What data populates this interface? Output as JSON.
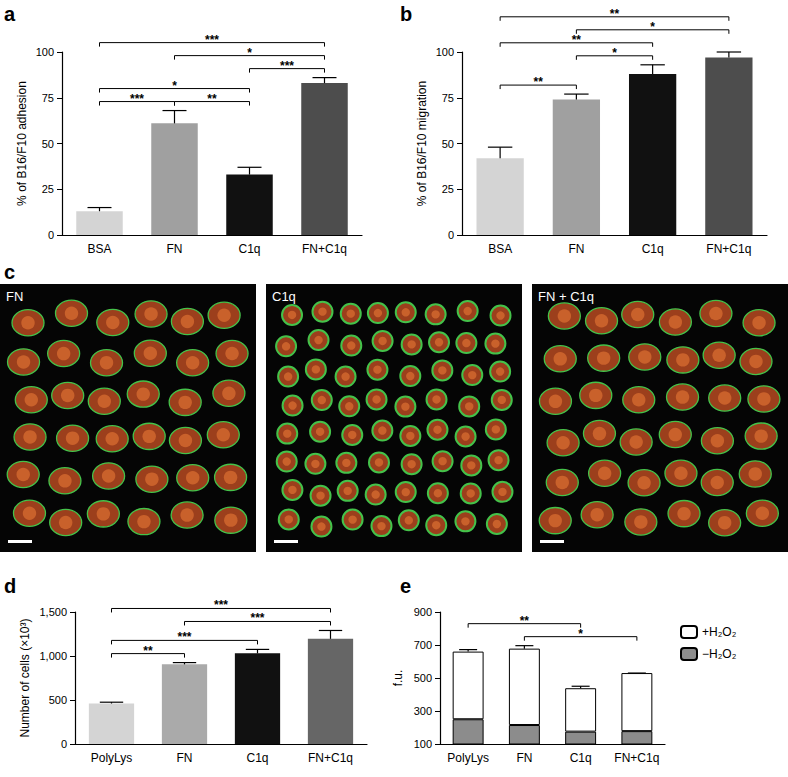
{
  "chart_data": [
    {
      "type": "bar",
      "title": "a",
      "categories": [
        "BSA",
        "FN",
        "C1q",
        "FN+C1q"
      ],
      "values": [
        13,
        61,
        33,
        83
      ],
      "errors": [
        2,
        7,
        4,
        3
      ],
      "colors": [
        "#d4d4d4",
        "#a0a0a0",
        "#111111",
        "#4d4d4d"
      ],
      "ylabel": "% of B16/F10 adhesion",
      "ylim": [
        0,
        100
      ],
      "yticks": [
        0,
        25,
        50,
        75,
        100
      ],
      "grid": false,
      "annotations": [
        {
          "from": "BSA",
          "to": "FN+C1q",
          "label": "***"
        },
        {
          "from": "FN",
          "to": "FN+C1q",
          "label": "*"
        },
        {
          "from": "C1q",
          "to": "FN+C1q",
          "label": "***"
        },
        {
          "from": "BSA",
          "to": "C1q",
          "label": "*"
        },
        {
          "from": "BSA",
          "to": "FN",
          "label": "***"
        },
        {
          "from": "FN",
          "to": "C1q",
          "label": "**"
        }
      ]
    },
    {
      "type": "bar",
      "title": "b",
      "categories": [
        "BSA",
        "FN",
        "C1q",
        "FN+C1q"
      ],
      "values": [
        42,
        74,
        88,
        97
      ],
      "errors": [
        6,
        3,
        5,
        3
      ],
      "colors": [
        "#d4d4d4",
        "#a0a0a0",
        "#111111",
        "#4d4d4d"
      ],
      "ylabel": "% of B16/F10 migration",
      "ylim": [
        0,
        100
      ],
      "yticks": [
        0,
        25,
        50,
        75,
        100
      ],
      "grid": false,
      "annotations": [
        {
          "from": "BSA",
          "to": "FN+C1q",
          "label": "**"
        },
        {
          "from": "FN",
          "to": "FN+C1q",
          "label": "*"
        },
        {
          "from": "BSA",
          "to": "C1q",
          "label": "**"
        },
        {
          "from": "FN",
          "to": "C1q",
          "label": "*"
        },
        {
          "from": "BSA",
          "to": "FN",
          "label": "**"
        }
      ]
    },
    {
      "type": "image",
      "title": "c",
      "categories": [
        "FN",
        "C1q",
        "FN + C1q"
      ]
    },
    {
      "type": "bar",
      "title": "d",
      "categories": [
        "PolyLys",
        "FN",
        "C1q",
        "FN+C1q"
      ],
      "values": [
        460,
        905,
        1030,
        1195
      ],
      "errors": [
        15,
        20,
        45,
        95
      ],
      "colors": [
        "#d4d4d4",
        "#aaaaaa",
        "#111111",
        "#666666"
      ],
      "ylabel": "Number of cells (×10³)",
      "ylim": [
        0,
        1500
      ],
      "yticks": [
        0,
        500,
        {
          "value": 1000,
          "label": "1,000"
        },
        {
          "value": 1500,
          "label": "1,500"
        }
      ],
      "grid": false,
      "annotations": [
        {
          "from": "PolyLys",
          "to": "FN+C1q",
          "label": "***"
        },
        {
          "from": "FN",
          "to": "FN+C1q",
          "label": "***"
        },
        {
          "from": "PolyLys",
          "to": "C1q",
          "label": "***"
        },
        {
          "from": "PolyLys",
          "to": "FN",
          "label": "**"
        }
      ]
    },
    {
      "type": "bar",
      "title": "e",
      "stacked": true,
      "categories": [
        "PolyLys",
        "FN",
        "C1q",
        "FN+C1q"
      ],
      "series": [
        {
          "name": "−H₂O₂",
          "color": "#8c8c8c",
          "values": [
            250,
            215,
            175,
            178
          ]
        },
        {
          "name": "+H₂O₂",
          "color": "#ffffff",
          "values": [
            410,
            463,
            263,
            352
          ],
          "errors": [
            12,
            18,
            12,
            0
          ]
        }
      ],
      "ylabel": "f.u.",
      "ylim": [
        100,
        900
      ],
      "yticks": [
        100,
        300,
        500,
        700,
        900
      ],
      "grid": false,
      "legend": "upper right",
      "annotations": [
        {
          "from": "PolyLys",
          "to": "C1q",
          "label": "**"
        },
        {
          "from": "FN",
          "to": "FN+C1q",
          "label": "*"
        }
      ]
    }
  ]
}
